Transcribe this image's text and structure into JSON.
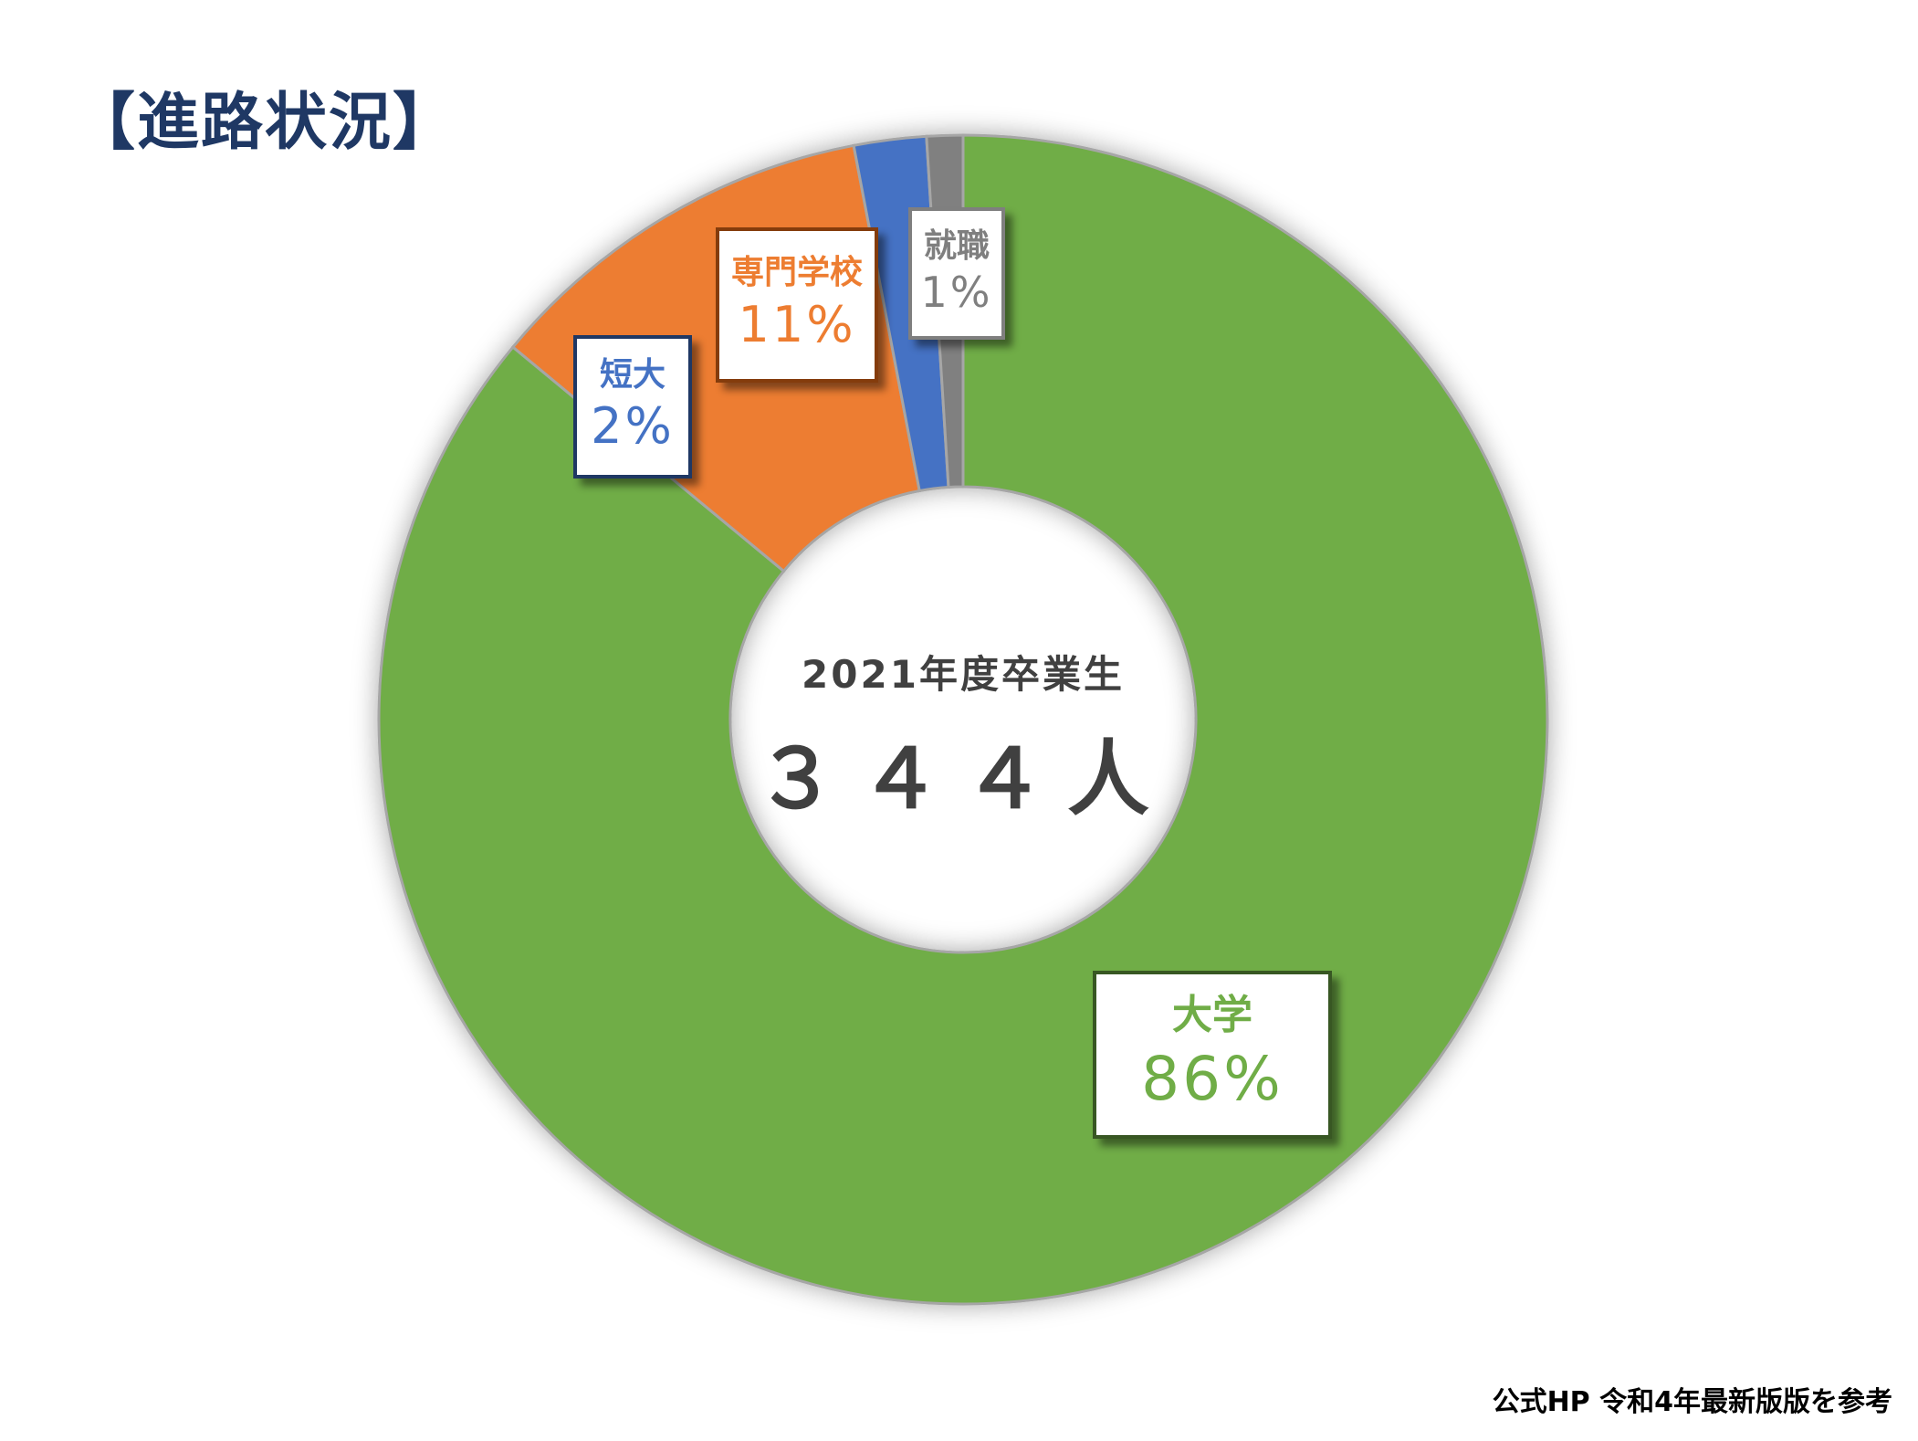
{
  "title": "【進路状況】",
  "source_note": "公式HP 令和4年最新版版を参考",
  "center": {
    "subtitle": "2021年度卒業生",
    "count": "３４４人"
  },
  "chart_data": {
    "type": "pie",
    "title": "【進路状況】",
    "variant": "donut",
    "labels": [
      "大学",
      "専門学校",
      "短大",
      "就職"
    ],
    "values": [
      86,
      11,
      2,
      1
    ],
    "percent_labels": [
      "86%",
      "11%",
      "2%",
      "1%"
    ],
    "colors": [
      "#70ad47",
      "#ed7d31",
      "#4472c4",
      "#808080"
    ],
    "start": "top",
    "direction": "clockwise",
    "legend": "none"
  },
  "labels": {
    "daigaku": {
      "name": "大学",
      "pct": "86%"
    },
    "senmon": {
      "name": "専門学校",
      "pct": "11%"
    },
    "tandai": {
      "name": "短大",
      "pct": "2%"
    },
    "shushoku": {
      "name": "就職",
      "pct": "1%"
    }
  }
}
